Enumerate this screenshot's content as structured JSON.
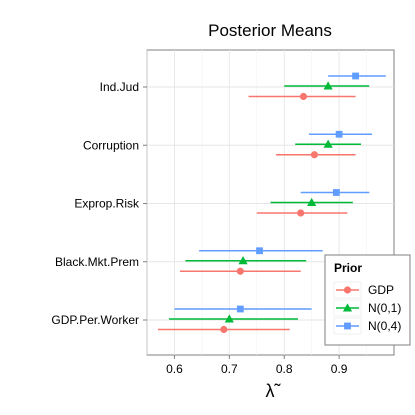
{
  "chart_data": {
    "type": "scatter",
    "title": "Posterior Means",
    "xlabel": "λ̃",
    "ylabel": "",
    "xlim": [
      0.55,
      1.0
    ],
    "x_ticks": [
      "0.6",
      "0.7",
      "0.8",
      "0.9"
    ],
    "categories": [
      "Ind.Jud",
      "Corruption",
      "Exprop.Risk",
      "Black.Mkt.Prem",
      "GDP.Per.Worker"
    ],
    "legend_title": "Prior",
    "legend_position": "bottom-right",
    "grid": true,
    "series": [
      {
        "name": "GDP",
        "color": "#F8766D",
        "marker": "circle",
        "points": [
          {
            "category": "Ind.Jud",
            "mean": 0.835,
            "low": 0.735,
            "high": 0.93
          },
          {
            "category": "Corruption",
            "mean": 0.855,
            "low": 0.785,
            "high": 0.93
          },
          {
            "category": "Exprop.Risk",
            "mean": 0.83,
            "low": 0.75,
            "high": 0.915
          },
          {
            "category": "Black.Mkt.Prem",
            "mean": 0.72,
            "low": 0.61,
            "high": 0.83
          },
          {
            "category": "GDP.Per.Worker",
            "mean": 0.69,
            "low": 0.57,
            "high": 0.81
          }
        ]
      },
      {
        "name": "N(0,1)",
        "color": "#00BA38",
        "marker": "triangle",
        "points": [
          {
            "category": "Ind.Jud",
            "mean": 0.88,
            "low": 0.8,
            "high": 0.955
          },
          {
            "category": "Corruption",
            "mean": 0.88,
            "low": 0.82,
            "high": 0.94
          },
          {
            "category": "Exprop.Risk",
            "mean": 0.85,
            "low": 0.775,
            "high": 0.925
          },
          {
            "category": "Black.Mkt.Prem",
            "mean": 0.725,
            "low": 0.62,
            "high": 0.84
          },
          {
            "category": "GDP.Per.Worker",
            "mean": 0.7,
            "low": 0.59,
            "high": 0.825
          }
        ]
      },
      {
        "name": "N(0,4)",
        "color": "#619CFF",
        "marker": "square",
        "points": [
          {
            "category": "Ind.Jud",
            "mean": 0.93,
            "low": 0.88,
            "high": 0.985
          },
          {
            "category": "Corruption",
            "mean": 0.9,
            "low": 0.845,
            "high": 0.96
          },
          {
            "category": "Exprop.Risk",
            "mean": 0.895,
            "low": 0.83,
            "high": 0.955
          },
          {
            "category": "Black.Mkt.Prem",
            "mean": 0.755,
            "low": 0.645,
            "high": 0.87
          },
          {
            "category": "GDP.Per.Worker",
            "mean": 0.72,
            "low": 0.6,
            "high": 0.85
          }
        ]
      }
    ]
  }
}
